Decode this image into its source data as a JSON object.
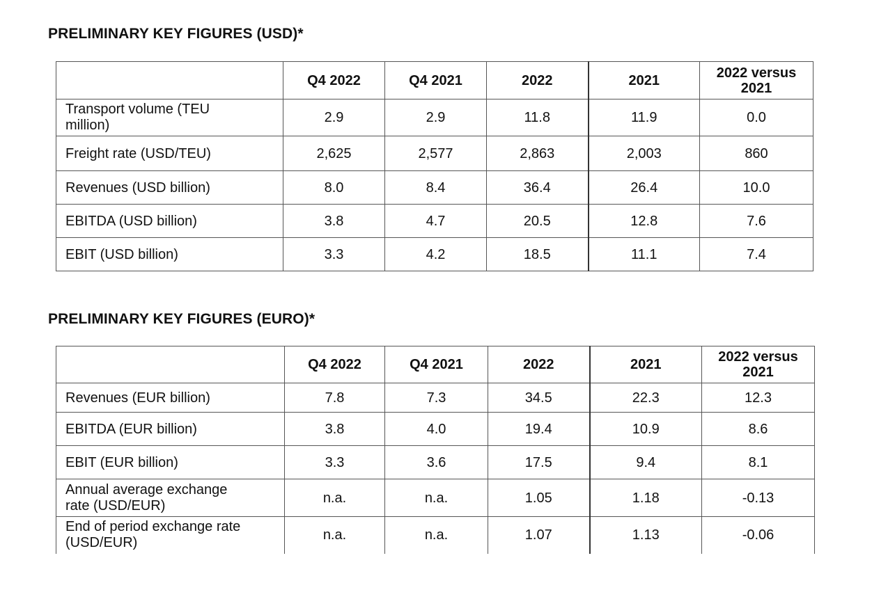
{
  "usd": {
    "title": "PRELIMINARY KEY FIGURES (USD)*",
    "headers": [
      "",
      "Q4 2022",
      "Q4 2021",
      "2022",
      "2021",
      "2022 versus\n2021"
    ],
    "rows": [
      {
        "label": "Transport volume (TEU\nmillion)",
        "values": [
          "2.9",
          "2.9",
          "11.8",
          "11.9",
          "0.0"
        ]
      },
      {
        "label": "Freight rate (USD/TEU)",
        "values": [
          "2,625",
          "2,577",
          "2,863",
          "2,003",
          "860"
        ]
      },
      {
        "label": "Revenues (USD billion)",
        "values": [
          "8.0",
          "8.4",
          "36.4",
          "26.4",
          "10.0"
        ]
      },
      {
        "label": "EBITDA (USD billion)",
        "values": [
          "3.8",
          "4.7",
          "20.5",
          "12.8",
          "7.6"
        ]
      },
      {
        "label": "EBIT (USD billion)",
        "values": [
          "3.3",
          "4.2",
          "18.5",
          "11.1",
          "7.4"
        ]
      }
    ]
  },
  "eur": {
    "title": "PRELIMINARY KEY FIGURES (EURO)*",
    "headers": [
      "",
      "Q4 2022",
      "Q4 2021",
      "2022",
      "2021",
      "2022 versus\n2021"
    ],
    "rows": [
      {
        "label": "Revenues (EUR billion)",
        "values": [
          "7.8",
          "7.3",
          "34.5",
          "22.3",
          "12.3"
        ]
      },
      {
        "label": "EBITDA (EUR billion)",
        "values": [
          "3.8",
          "4.0",
          "19.4",
          "10.9",
          "8.6"
        ]
      },
      {
        "label": "EBIT (EUR billion)",
        "values": [
          "3.3",
          "3.6",
          "17.5",
          "9.4",
          "8.1"
        ]
      },
      {
        "label": "Annual average exchange\nrate (USD/EUR)",
        "values": [
          "n.a.",
          "n.a.",
          "1.05",
          "1.18",
          "-0.13"
        ]
      },
      {
        "label": "End of period exchange rate\n(USD/EUR)",
        "values": [
          "n.a.",
          "n.a.",
          "1.07",
          "1.13",
          "-0.06"
        ]
      }
    ]
  }
}
